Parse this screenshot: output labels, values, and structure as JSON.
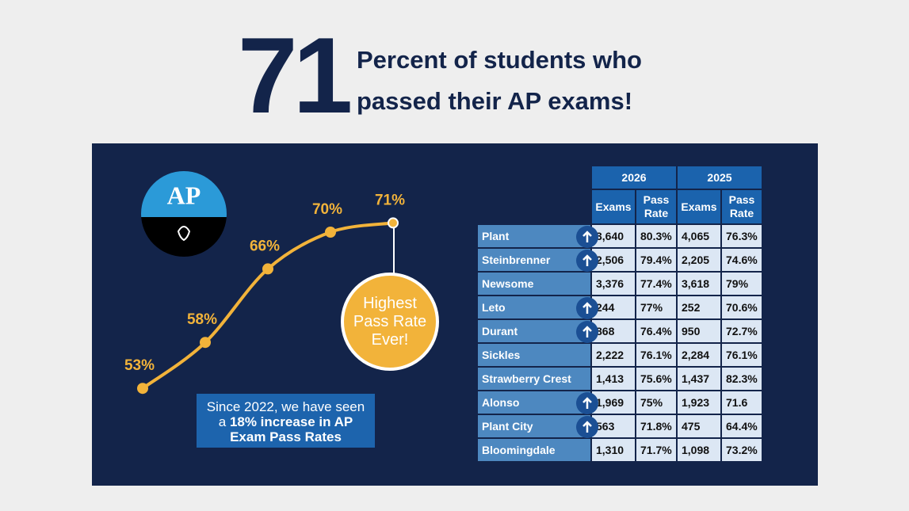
{
  "headline": {
    "number": "71",
    "lines": [
      "Percent of students who",
      "passed their AP exams!"
    ]
  },
  "logo": "AP",
  "chart_data": {
    "type": "line",
    "categories": [
      null,
      null,
      null,
      null,
      null
    ],
    "values": [
      53,
      58,
      66,
      70,
      71
    ],
    "value_labels": [
      "53%",
      "58%",
      "66%",
      "70%",
      "71%"
    ],
    "color": "#f2b33a",
    "ylim": [
      50,
      75
    ]
  },
  "badge": [
    "Highest",
    "Pass Rate",
    "Ever!"
  ],
  "callout": {
    "text": "Since 2022, we have seen a ",
    "bold": "18% increase in AP Exam Pass Rates"
  },
  "table": {
    "years": [
      "2026",
      "2025"
    ],
    "columns": [
      "Exams",
      "Pass Rate",
      "Exams",
      "Pass Rate"
    ],
    "rows": [
      [
        "Plant",
        "3,640",
        "80.3%",
        "4,065",
        "76.3%"
      ],
      [
        "Steinbrenner",
        "2,506",
        "79.4%",
        "2,205",
        "74.6%"
      ],
      [
        "Newsome",
        "3,376",
        "77.4%",
        "3,618",
        "79%"
      ],
      [
        "Leto",
        "244",
        "77%",
        "252",
        "70.6%"
      ],
      [
        "Durant",
        "868",
        "76.4%",
        "950",
        "72.7%"
      ],
      [
        "Sickles",
        "2,222",
        "76.1%",
        "2,284",
        "76.1%"
      ],
      [
        "Strawberry Crest",
        "1,413",
        "75.6%",
        "1,437",
        "82.3%"
      ],
      [
        "Alonso",
        "1,969",
        "75%",
        "1,923",
        "71.6"
      ],
      [
        "Plant City",
        "563",
        "71.8%",
        "475",
        "64.4%"
      ],
      [
        "Bloomingdale",
        "1,310",
        "71.7%",
        "1,098",
        "73.2%"
      ]
    ],
    "improved": [
      true,
      true,
      false,
      true,
      true,
      false,
      false,
      true,
      true,
      false
    ]
  }
}
